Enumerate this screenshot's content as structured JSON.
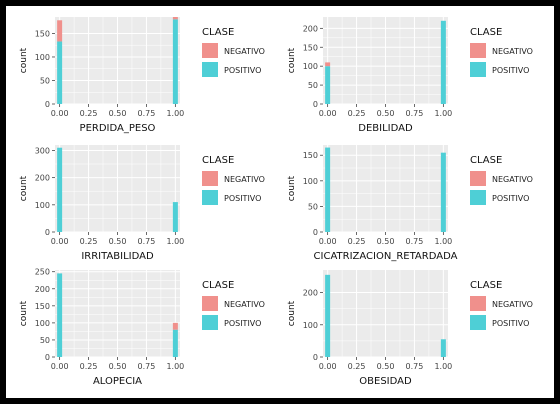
{
  "chart_data": [
    {
      "type": "bar",
      "title": "",
      "xlabel": "PERDIDA_PESO",
      "ylabel": "count",
      "xticks": [
        "0.00",
        "0.25",
        "0.50",
        "0.75",
        "1.00"
      ],
      "yticks": [
        "0",
        "50",
        "100",
        "150"
      ],
      "ylim": [
        0,
        185
      ],
      "grid": true,
      "legend": {
        "title": "CLASE",
        "placement": "right",
        "entries": [
          "NEGATIVO",
          "POSITIVO"
        ]
      },
      "x": [
        0,
        1
      ],
      "series": [
        {
          "name": "NEGATIVO",
          "values": [
            45,
            5
          ]
        },
        {
          "name": "POSITIVO",
          "values": [
            133,
            180
          ]
        }
      ]
    },
    {
      "type": "bar",
      "title": "",
      "xlabel": "DEBILIDAD",
      "ylabel": "count",
      "xticks": [
        "0.00",
        "0.25",
        "0.50",
        "0.75",
        "1.00"
      ],
      "yticks": [
        "0",
        "50",
        "100",
        "150",
        "200"
      ],
      "ylim": [
        0,
        230
      ],
      "grid": true,
      "legend": {
        "title": "CLASE",
        "placement": "right",
        "entries": [
          "NEGATIVO",
          "POSITIVO"
        ]
      },
      "x": [
        0,
        1
      ],
      "series": [
        {
          "name": "NEGATIVO",
          "values": [
            10,
            0
          ]
        },
        {
          "name": "POSITIVO",
          "values": [
            100,
            220
          ]
        }
      ]
    },
    {
      "type": "bar",
      "title": "",
      "xlabel": "IRRITABILIDAD",
      "ylabel": "count",
      "xticks": [
        "0.00",
        "0.25",
        "0.50",
        "0.75",
        "1.00"
      ],
      "yticks": [
        "0",
        "100",
        "200",
        "300"
      ],
      "ylim": [
        0,
        320
      ],
      "grid": true,
      "legend": {
        "title": "CLASE",
        "placement": "right",
        "entries": [
          "NEGATIVO",
          "POSITIVO"
        ]
      },
      "x": [
        0,
        1
      ],
      "series": [
        {
          "name": "NEGATIVO",
          "values": [
            0,
            0
          ]
        },
        {
          "name": "POSITIVO",
          "values": [
            310,
            110
          ]
        }
      ]
    },
    {
      "type": "bar",
      "title": "",
      "xlabel": "CICATRIZACION_RETARDADA",
      "ylabel": "count",
      "xticks": [
        "0.00",
        "0.25",
        "0.50",
        "0.75",
        "1.00"
      ],
      "yticks": [
        "0",
        "50",
        "100",
        "150"
      ],
      "ylim": [
        0,
        170
      ],
      "grid": true,
      "legend": {
        "title": "CLASE",
        "placement": "right",
        "entries": [
          "NEGATIVO",
          "POSITIVO"
        ]
      },
      "x": [
        0,
        1
      ],
      "series": [
        {
          "name": "NEGATIVO",
          "values": [
            0,
            0
          ]
        },
        {
          "name": "POSITIVO",
          "values": [
            165,
            155
          ]
        }
      ]
    },
    {
      "type": "bar",
      "title": "",
      "xlabel": "ALOPECIA",
      "ylabel": "count",
      "xticks": [
        "0.00",
        "0.25",
        "0.50",
        "0.75",
        "1.00"
      ],
      "yticks": [
        "0",
        "50",
        "100",
        "150",
        "200",
        "250"
      ],
      "ylim": [
        0,
        255
      ],
      "grid": true,
      "legend": {
        "title": "CLASE",
        "placement": "right",
        "entries": [
          "NEGATIVO",
          "POSITIVO"
        ]
      },
      "x": [
        0,
        1
      ],
      "series": [
        {
          "name": "NEGATIVO",
          "values": [
            0,
            20
          ]
        },
        {
          "name": "POSITIVO",
          "values": [
            245,
            80
          ]
        }
      ]
    },
    {
      "type": "bar",
      "title": "",
      "xlabel": "OBESIDAD",
      "ylabel": "count",
      "xticks": [
        "0.00",
        "0.25",
        "0.50",
        "0.75",
        "1.00"
      ],
      "yticks": [
        "0",
        "100",
        "200"
      ],
      "ylim": [
        0,
        270
      ],
      "grid": true,
      "legend": {
        "title": "CLASE",
        "placement": "right",
        "entries": [
          "NEGATIVO",
          "POSITIVO"
        ]
      },
      "x": [
        0,
        1
      ],
      "series": [
        {
          "name": "NEGATIVO",
          "values": [
            0,
            0
          ]
        },
        {
          "name": "POSITIVO",
          "values": [
            255,
            55
          ]
        }
      ]
    }
  ],
  "colors": {
    "negativo": "#f0908c",
    "positivo": "#4ecfd6",
    "panel_bg": "#ebebeb",
    "grid": "#ffffff"
  }
}
